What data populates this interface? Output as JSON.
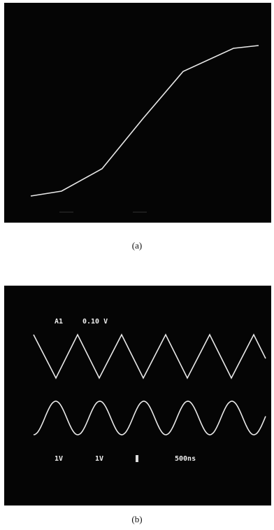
{
  "panels": [
    {
      "caption": "(a)"
    },
    {
      "caption": "(b)",
      "readouts": {
        "channel": "A1",
        "scale": "0.10 V",
        "ch1": "1V",
        "ch2": "1V",
        "timebase": "500ns"
      }
    }
  ]
}
